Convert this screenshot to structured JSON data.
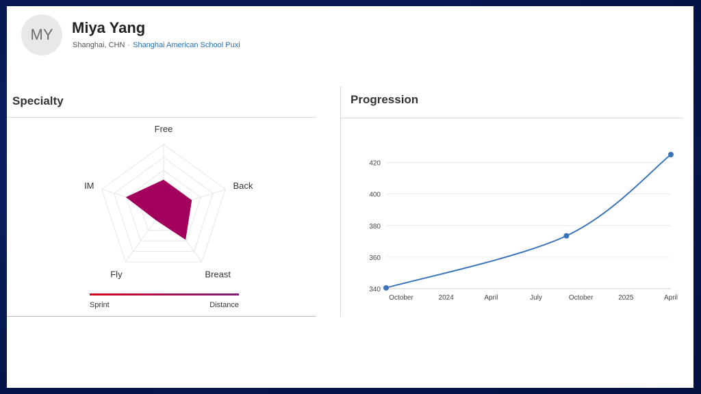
{
  "profile": {
    "initials": "MY",
    "name": "Miya Yang",
    "location": "Shanghai, CHN",
    "separator": "·",
    "school": "Shanghai American School Puxi"
  },
  "specialty": {
    "title": "Specialty",
    "axes": [
      "Free",
      "Back",
      "Breast",
      "Fly",
      "IM"
    ],
    "values": [
      0.45,
      0.45,
      0.57,
      0.2,
      0.6
    ],
    "fill_color": "#a3005e",
    "scale_left": "Sprint",
    "scale_right": "Distance",
    "scale_colors": [
      "#d6001c",
      "#7d1e7a"
    ]
  },
  "progression": {
    "title": "Progression",
    "chart_data": {
      "type": "line",
      "x_tick_labels": [
        "October",
        "2024",
        "April",
        "July",
        "October",
        "2025",
        "April"
      ],
      "y_ticks": [
        340,
        360,
        380,
        400,
        420
      ],
      "ylim": [
        340,
        425
      ],
      "series": [
        {
          "values": [
            {
              "x": "2023-09",
              "y": 340.5
            },
            {
              "x": "2024-09",
              "y": 373.5
            },
            {
              "x": "2025-04",
              "y": 425
            }
          ]
        }
      ],
      "line_color": "#3a73b8",
      "grid": true
    }
  }
}
